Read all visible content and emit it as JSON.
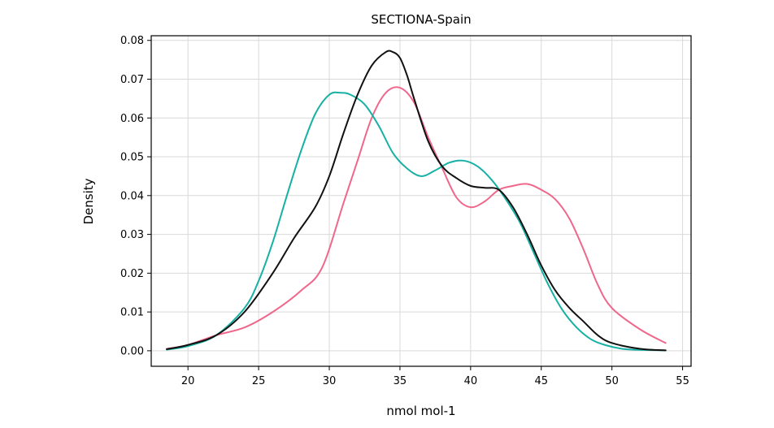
{
  "chart_data": {
    "type": "line",
    "title": "SECTIONA-Spain",
    "xlabel": "nmol mol-1",
    "ylabel": "Density",
    "xlim": [
      17.4,
      55.6
    ],
    "ylim": [
      -0.004,
      0.0812
    ],
    "xticks": [
      20,
      25,
      30,
      35,
      40,
      45,
      50,
      55
    ],
    "yticks": [
      0.0,
      0.01,
      0.02,
      0.03,
      0.04,
      0.05,
      0.06,
      0.07,
      0.08
    ],
    "xtick_labels": [
      "20",
      "25",
      "30",
      "35",
      "40",
      "45",
      "50",
      "55"
    ],
    "ytick_labels": [
      "0.00",
      "0.01",
      "0.02",
      "0.03",
      "0.04",
      "0.05",
      "0.06",
      "0.07",
      "0.08"
    ],
    "grid": true,
    "legend": "none",
    "series": [
      {
        "color": "#f0678c",
        "x": [
          18.5,
          20,
          22,
          24,
          26,
          28,
          29.5,
          31,
          32,
          33,
          34,
          35,
          36,
          37,
          38,
          39,
          40,
          41,
          42,
          43,
          44,
          45,
          46,
          47,
          48,
          49,
          50,
          52,
          53.8
        ],
        "y": [
          0.0005,
          0.0015,
          0.004,
          0.006,
          0.01,
          0.0155,
          0.0215,
          0.038,
          0.049,
          0.06,
          0.0665,
          0.0678,
          0.064,
          0.055,
          0.047,
          0.0395,
          0.037,
          0.0385,
          0.0415,
          0.0425,
          0.043,
          0.0415,
          0.039,
          0.034,
          0.026,
          0.017,
          0.011,
          0.0055,
          0.002
        ]
      },
      {
        "color": "#16b1a4",
        "x": [
          18.5,
          20,
          22,
          24,
          25,
          26,
          27,
          28,
          29,
          30,
          30.8,
          31.5,
          32.5,
          33.5,
          34.5,
          35.5,
          36.5,
          37.5,
          38.5,
          39.5,
          40.5,
          41.5,
          42.5,
          43.5,
          44.5,
          45.5,
          46.5,
          47.5,
          48.5,
          49.5,
          51,
          53.8
        ],
        "y": [
          0.0003,
          0.0012,
          0.004,
          0.011,
          0.018,
          0.028,
          0.04,
          0.0515,
          0.061,
          0.066,
          0.0665,
          0.066,
          0.0635,
          0.058,
          0.051,
          0.047,
          0.045,
          0.0465,
          0.0485,
          0.049,
          0.0475,
          0.044,
          0.039,
          0.033,
          0.025,
          0.017,
          0.0105,
          0.006,
          0.003,
          0.0015,
          0.0004,
          0.0001
        ]
      },
      {
        "color": "#111111",
        "x": [
          18.5,
          20,
          22,
          24,
          26,
          27.5,
          29,
          30,
          31,
          32,
          33,
          34,
          34.5,
          35,
          35.5,
          36,
          37,
          38,
          39,
          40,
          41,
          42,
          43,
          44,
          45,
          46,
          47,
          48,
          49,
          50,
          52,
          53.8
        ],
        "y": [
          0.0004,
          0.0015,
          0.004,
          0.01,
          0.02,
          0.029,
          0.037,
          0.045,
          0.056,
          0.066,
          0.0735,
          0.077,
          0.077,
          0.0755,
          0.071,
          0.065,
          0.054,
          0.0475,
          0.0445,
          0.0425,
          0.042,
          0.0415,
          0.037,
          0.03,
          0.022,
          0.0155,
          0.011,
          0.0075,
          0.004,
          0.002,
          0.0005,
          0.0001
        ]
      }
    ]
  }
}
